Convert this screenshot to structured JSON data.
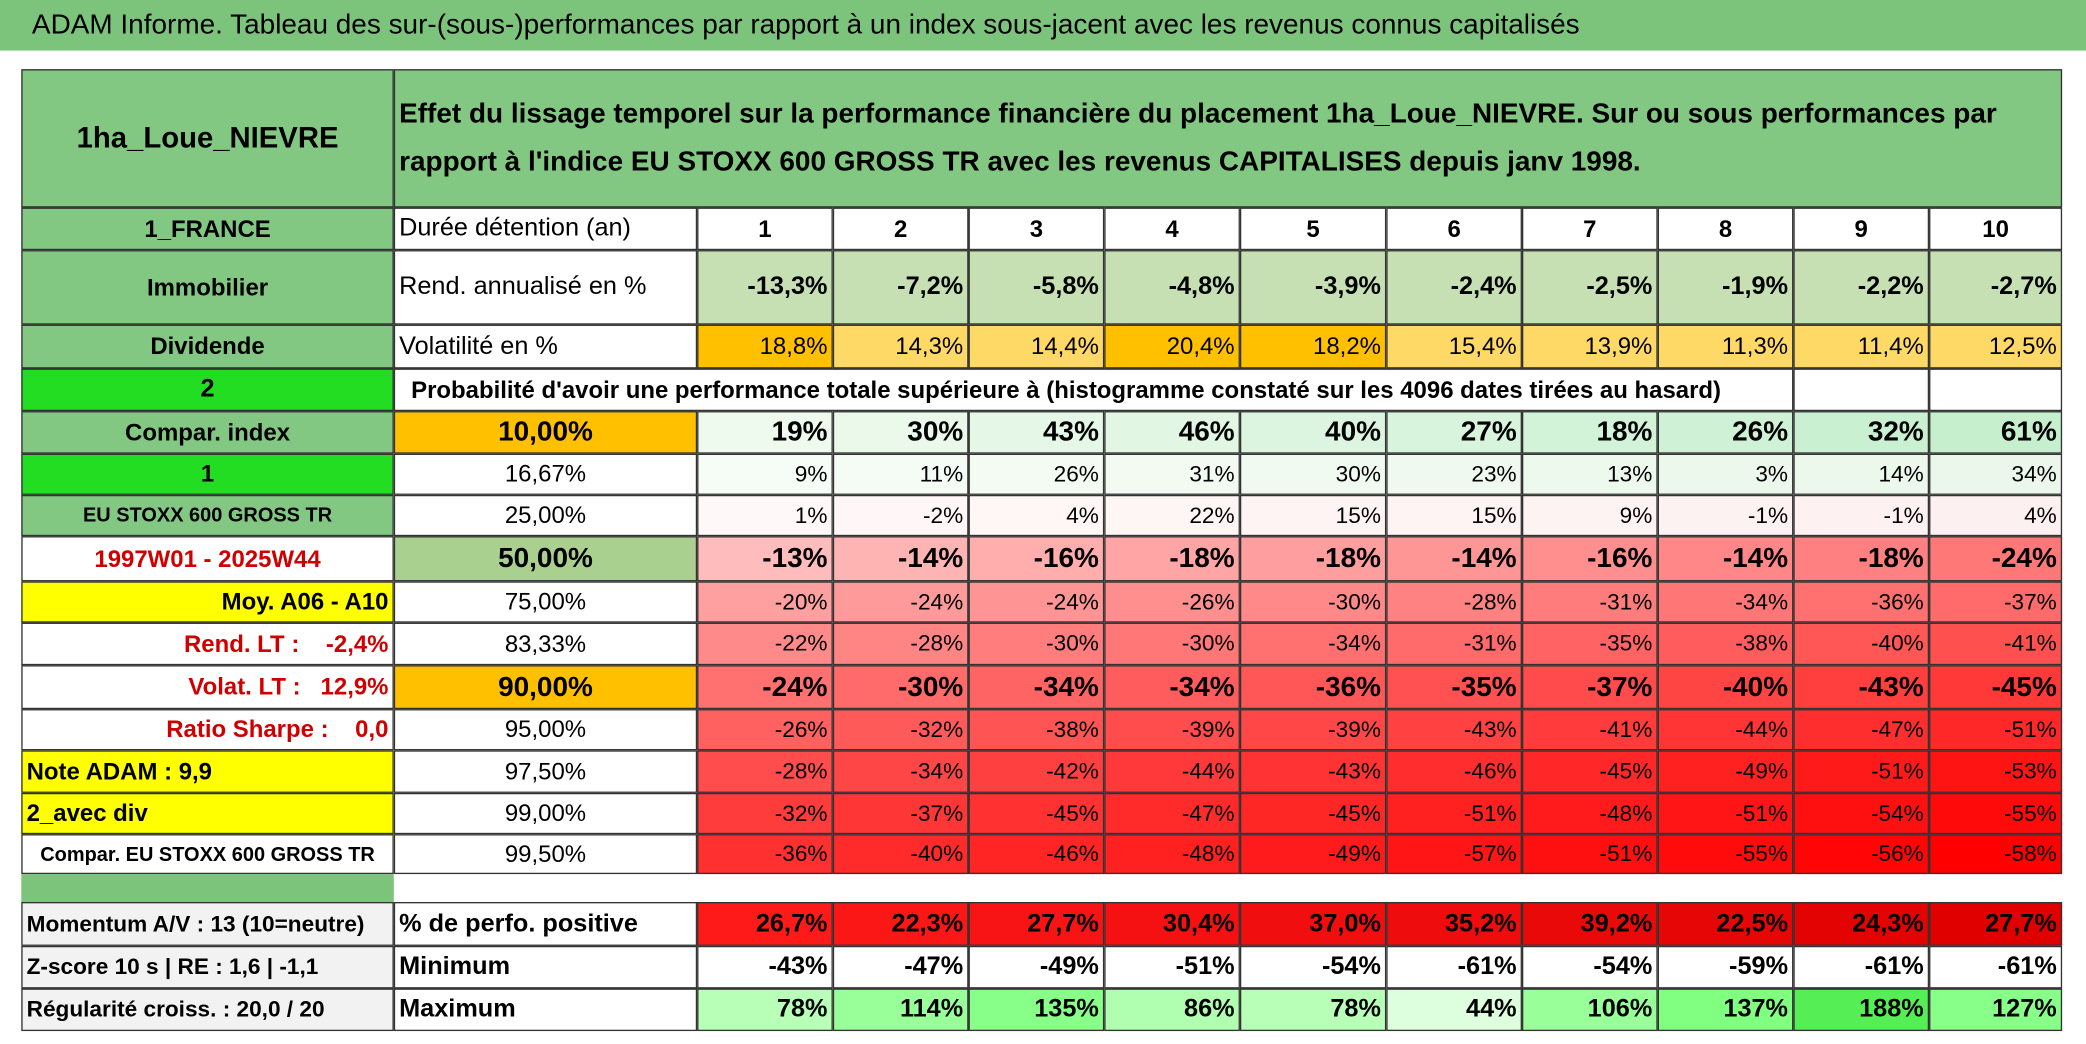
{
  "title": "ADAM Informe. Tableau des sur-(sous-)performances par rapport à un index sous-jacent avec les revenus connus capitalisés",
  "header": {
    "fund": "1ha_Loue_NIEVRE",
    "description": "Effet du lissage temporel sur la performance financière du placement 1ha_Loue_NIEVRE. Sur ou sous performances par rapport à l'indice EU STOXX 600 GROSS TR avec les revenus CAPITALISES depuis janv 1998."
  },
  "summary": [
    {
      "label": "1_FRANCE",
      "name": "Durée détention (an)",
      "cells": [
        "1",
        "2",
        "3",
        "4",
        "5",
        "6",
        "7",
        "8",
        "9",
        "10"
      ]
    },
    {
      "label": "Immobilier",
      "name": "Rend. annualisé en %",
      "cells": [
        "-13,3%",
        "-7,2%",
        "-5,8%",
        "-4,8%",
        "-3,9%",
        "-2,4%",
        "-2,5%",
        "-1,9%",
        "-2,2%",
        "-2,7%"
      ]
    },
    {
      "label": "Dividende",
      "name": "Volatilité en %",
      "cells": [
        "18,8%",
        "14,3%",
        "14,4%",
        "20,4%",
        "18,2%",
        "15,4%",
        "13,9%",
        "11,3%",
        "11,4%",
        "12,5%"
      ]
    }
  ],
  "probability": {
    "label": "2",
    "caption": "Probabilité d'avoir une performance totale supérieure à (histogramme constaté sur les 4096 dates tirées au hasard)",
    "rows": [
      {
        "label": "Compar. index",
        "threshold": "10,00%",
        "cells": [
          "19%",
          "30%",
          "43%",
          "46%",
          "40%",
          "27%",
          "18%",
          "26%",
          "32%",
          "61%"
        ]
      },
      {
        "label": "1",
        "threshold": "16,67%",
        "cells": [
          "9%",
          "11%",
          "26%",
          "31%",
          "30%",
          "23%",
          "13%",
          "3%",
          "14%",
          "34%"
        ]
      },
      {
        "label": "EU STOXX 600 GROSS TR",
        "threshold": "25,00%",
        "cells": [
          "1%",
          "-2%",
          "4%",
          "22%",
          "15%",
          "15%",
          "9%",
          "-1%",
          "-1%",
          "4%"
        ]
      },
      {
        "label": "1997W01 - 2025W44",
        "threshold": "50,00%",
        "cells": [
          "-13%",
          "-14%",
          "-16%",
          "-18%",
          "-18%",
          "-14%",
          "-16%",
          "-14%",
          "-18%",
          "-24%"
        ]
      },
      {
        "label": "Moy. A06 - A10",
        "threshold": "75,00%",
        "cells": [
          "-20%",
          "-24%",
          "-24%",
          "-26%",
          "-30%",
          "-28%",
          "-31%",
          "-34%",
          "-36%",
          "-37%"
        ]
      },
      {
        "label": "Rend. LT :    -2,4%",
        "threshold": "83,33%",
        "cells": [
          "-22%",
          "-28%",
          "-30%",
          "-30%",
          "-34%",
          "-31%",
          "-35%",
          "-38%",
          "-40%",
          "-41%"
        ]
      },
      {
        "label": "Volat. LT :   12,9%",
        "threshold": "90,00%",
        "cells": [
          "-24%",
          "-30%",
          "-34%",
          "-34%",
          "-36%",
          "-35%",
          "-37%",
          "-40%",
          "-43%",
          "-45%"
        ]
      },
      {
        "label": "Ratio Sharpe :    0,0",
        "threshold": "95,00%",
        "cells": [
          "-26%",
          "-32%",
          "-38%",
          "-39%",
          "-39%",
          "-43%",
          "-41%",
          "-44%",
          "-47%",
          "-51%"
        ]
      },
      {
        "label": "Note ADAM : 9,9",
        "threshold": "97,50%",
        "cells": [
          "-28%",
          "-34%",
          "-42%",
          "-44%",
          "-43%",
          "-46%",
          "-45%",
          "-49%",
          "-51%",
          "-53%"
        ]
      },
      {
        "label": "2_avec div",
        "threshold": "99,00%",
        "cells": [
          "-32%",
          "-37%",
          "-45%",
          "-47%",
          "-45%",
          "-51%",
          "-48%",
          "-51%",
          "-54%",
          "-55%"
        ]
      },
      {
        "label": "Compar. EU STOXX 600 GROSS TR",
        "threshold": "99,50%",
        "cells": [
          "-36%",
          "-40%",
          "-46%",
          "-48%",
          "-49%",
          "-57%",
          "-51%",
          "-55%",
          "-56%",
          "-58%"
        ]
      }
    ]
  },
  "stats": [
    {
      "label": "Momentum A/V : 13 (10=neutre)",
      "name": "% de perfo. positive",
      "cells": [
        "26,7%",
        "22,3%",
        "27,7%",
        "30,4%",
        "37,0%",
        "35,2%",
        "39,2%",
        "22,5%",
        "24,3%",
        "27,7%"
      ]
    },
    {
      "label": "Z-score 10 s | RE : 1,6 | -1,1",
      "name": "Minimum",
      "cells": [
        "-43%",
        "-47%",
        "-49%",
        "-51%",
        "-54%",
        "-61%",
        "-54%",
        "-59%",
        "-61%",
        "-61%"
      ]
    },
    {
      "label": "Régularité croiss. : 20,0 / 20",
      "name": "Maximum",
      "cells": [
        "78%",
        "114%",
        "135%",
        "86%",
        "78%",
        "44%",
        "106%",
        "137%",
        "188%",
        "127%"
      ]
    }
  ]
}
